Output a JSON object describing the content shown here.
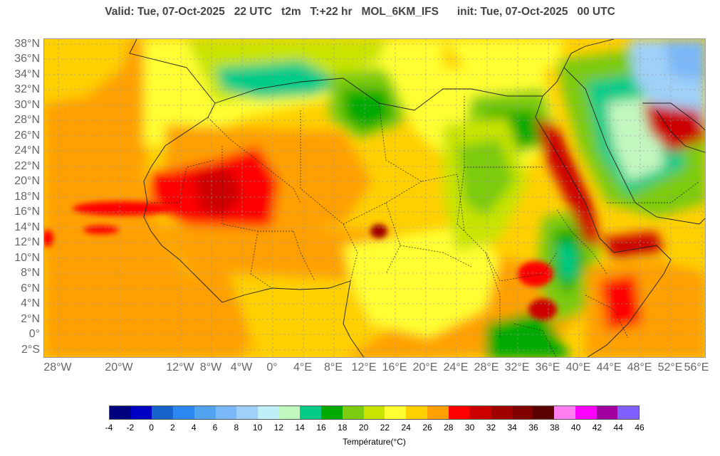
{
  "header": {
    "valid": "Valid: Tue, 07-Oct-2025",
    "hour": "22 UTC",
    "variable": "t2m",
    "lead": "T:+22 hr",
    "model": "MOL_6KM_IFS",
    "init": "init: Tue, 07-Oct-2025",
    "init_hour": "00 UTC"
  },
  "map": {
    "lat_labels": [
      "38°N",
      "36°N",
      "34°N",
      "32°N",
      "30°N",
      "28°N",
      "26°N",
      "24°N",
      "22°N",
      "20°N",
      "18°N",
      "16°N",
      "14°N",
      "12°N",
      "10°N",
      "8°N",
      "6°N",
      "4°N",
      "2°N",
      "0°",
      "2°S"
    ],
    "lon_labels": [
      "28°W",
      "20°W",
      "12°W",
      "8°W",
      "4°W",
      "0°",
      "4°E",
      "8°E",
      "12°E",
      "16°E",
      "20°E",
      "24°E",
      "28°E",
      "32°E",
      "36°E",
      "40°E",
      "44°E",
      "48°E",
      "52°E",
      "56°E"
    ]
  },
  "legend": {
    "unit": "Température(°C)",
    "ticks": [
      "-4",
      "-2",
      "0",
      "2",
      "4",
      "6",
      "8",
      "10",
      "12",
      "14",
      "16",
      "18",
      "20",
      "22",
      "24",
      "26",
      "28",
      "30",
      "32",
      "34",
      "36",
      "38",
      "40",
      "42",
      "44",
      "46"
    ],
    "colors": [
      "#00007f",
      "#0000c4",
      "#1763cc",
      "#2d87f0",
      "#52a4f0",
      "#7bb8f8",
      "#9fd0f8",
      "#bff0f8",
      "#c3f7c0",
      "#00cc88",
      "#00aa00",
      "#7bcb10",
      "#c8e400",
      "#ffff32",
      "#ffd000",
      "#ffa000",
      "#ff0000",
      "#cc0000",
      "#a00000",
      "#800000",
      "#5c0000",
      "#ff7ff0",
      "#ff00ff",
      "#a000a0",
      "#8060ff"
    ]
  }
}
